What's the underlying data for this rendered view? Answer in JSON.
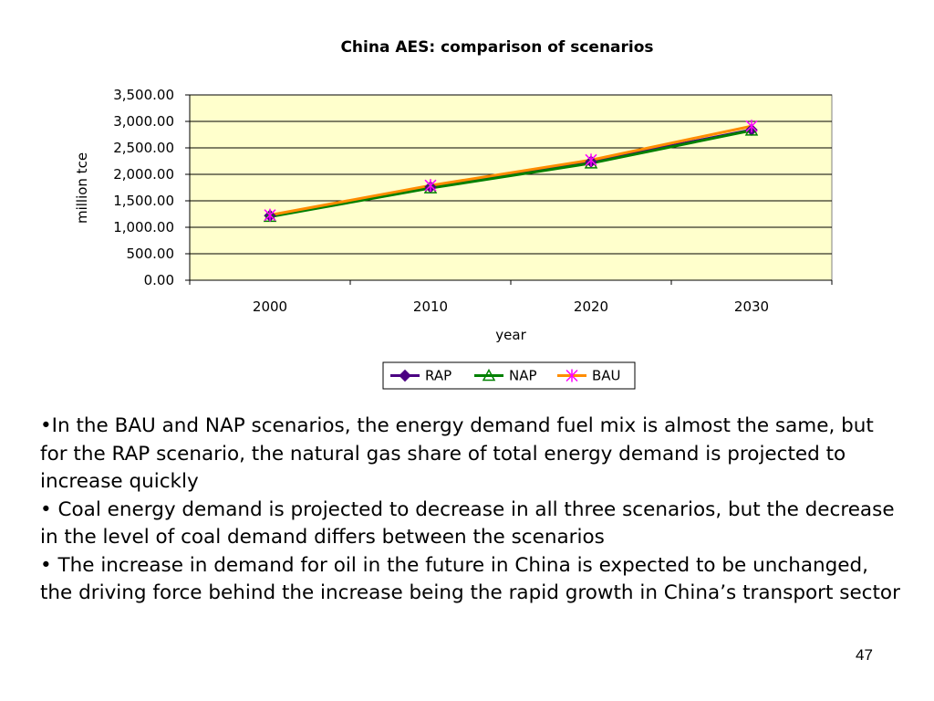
{
  "slide": {
    "bullets": [
      "•In the BAU and NAP scenarios, the energy demand fuel mix is almost the same, but for the RAP scenario, the natural gas share of total energy demand is projected to increase quickly",
      "• Coal energy demand is projected to decrease in all three scenarios, but the decrease in the level of coal demand differs between the scenarios",
      "• The increase in demand for oil in the future in China is expected to be unchanged, the driving force behind the increase being the rapid growth in China’s transport sector"
    ],
    "page_number": "47"
  },
  "chart_data": {
    "type": "line",
    "title": "China AES: comparison of scenarios",
    "xlabel": "year",
    "ylabel": "million tce",
    "categories": [
      "2000",
      "2010",
      "2020",
      "2030"
    ],
    "series": [
      {
        "name": "RAP",
        "values": [
          1220,
          1760,
          2240,
          2840
        ],
        "color": "#4B0082",
        "marker": "diamond"
      },
      {
        "name": "NAP",
        "values": [
          1200,
          1740,
          2210,
          2830
        ],
        "color": "#008000",
        "marker": "triangle"
      },
      {
        "name": "BAU",
        "values": [
          1230,
          1790,
          2270,
          2910
        ],
        "color": "#FF8C00",
        "marker": "asterisk",
        "marker_color": "#FF00FF"
      }
    ],
    "ylim": [
      0,
      3500
    ],
    "yticks": [
      0,
      500,
      1000,
      1500,
      2000,
      2500,
      3000,
      3500
    ],
    "ytick_labels": [
      "0.00",
      "500.00",
      "1,000.00",
      "1,500.00",
      "2,000.00",
      "2,500.00",
      "3,000.00",
      "3,500.00"
    ],
    "grid": true,
    "plot_background": "#FFFFCC",
    "legend_position": "bottom"
  }
}
